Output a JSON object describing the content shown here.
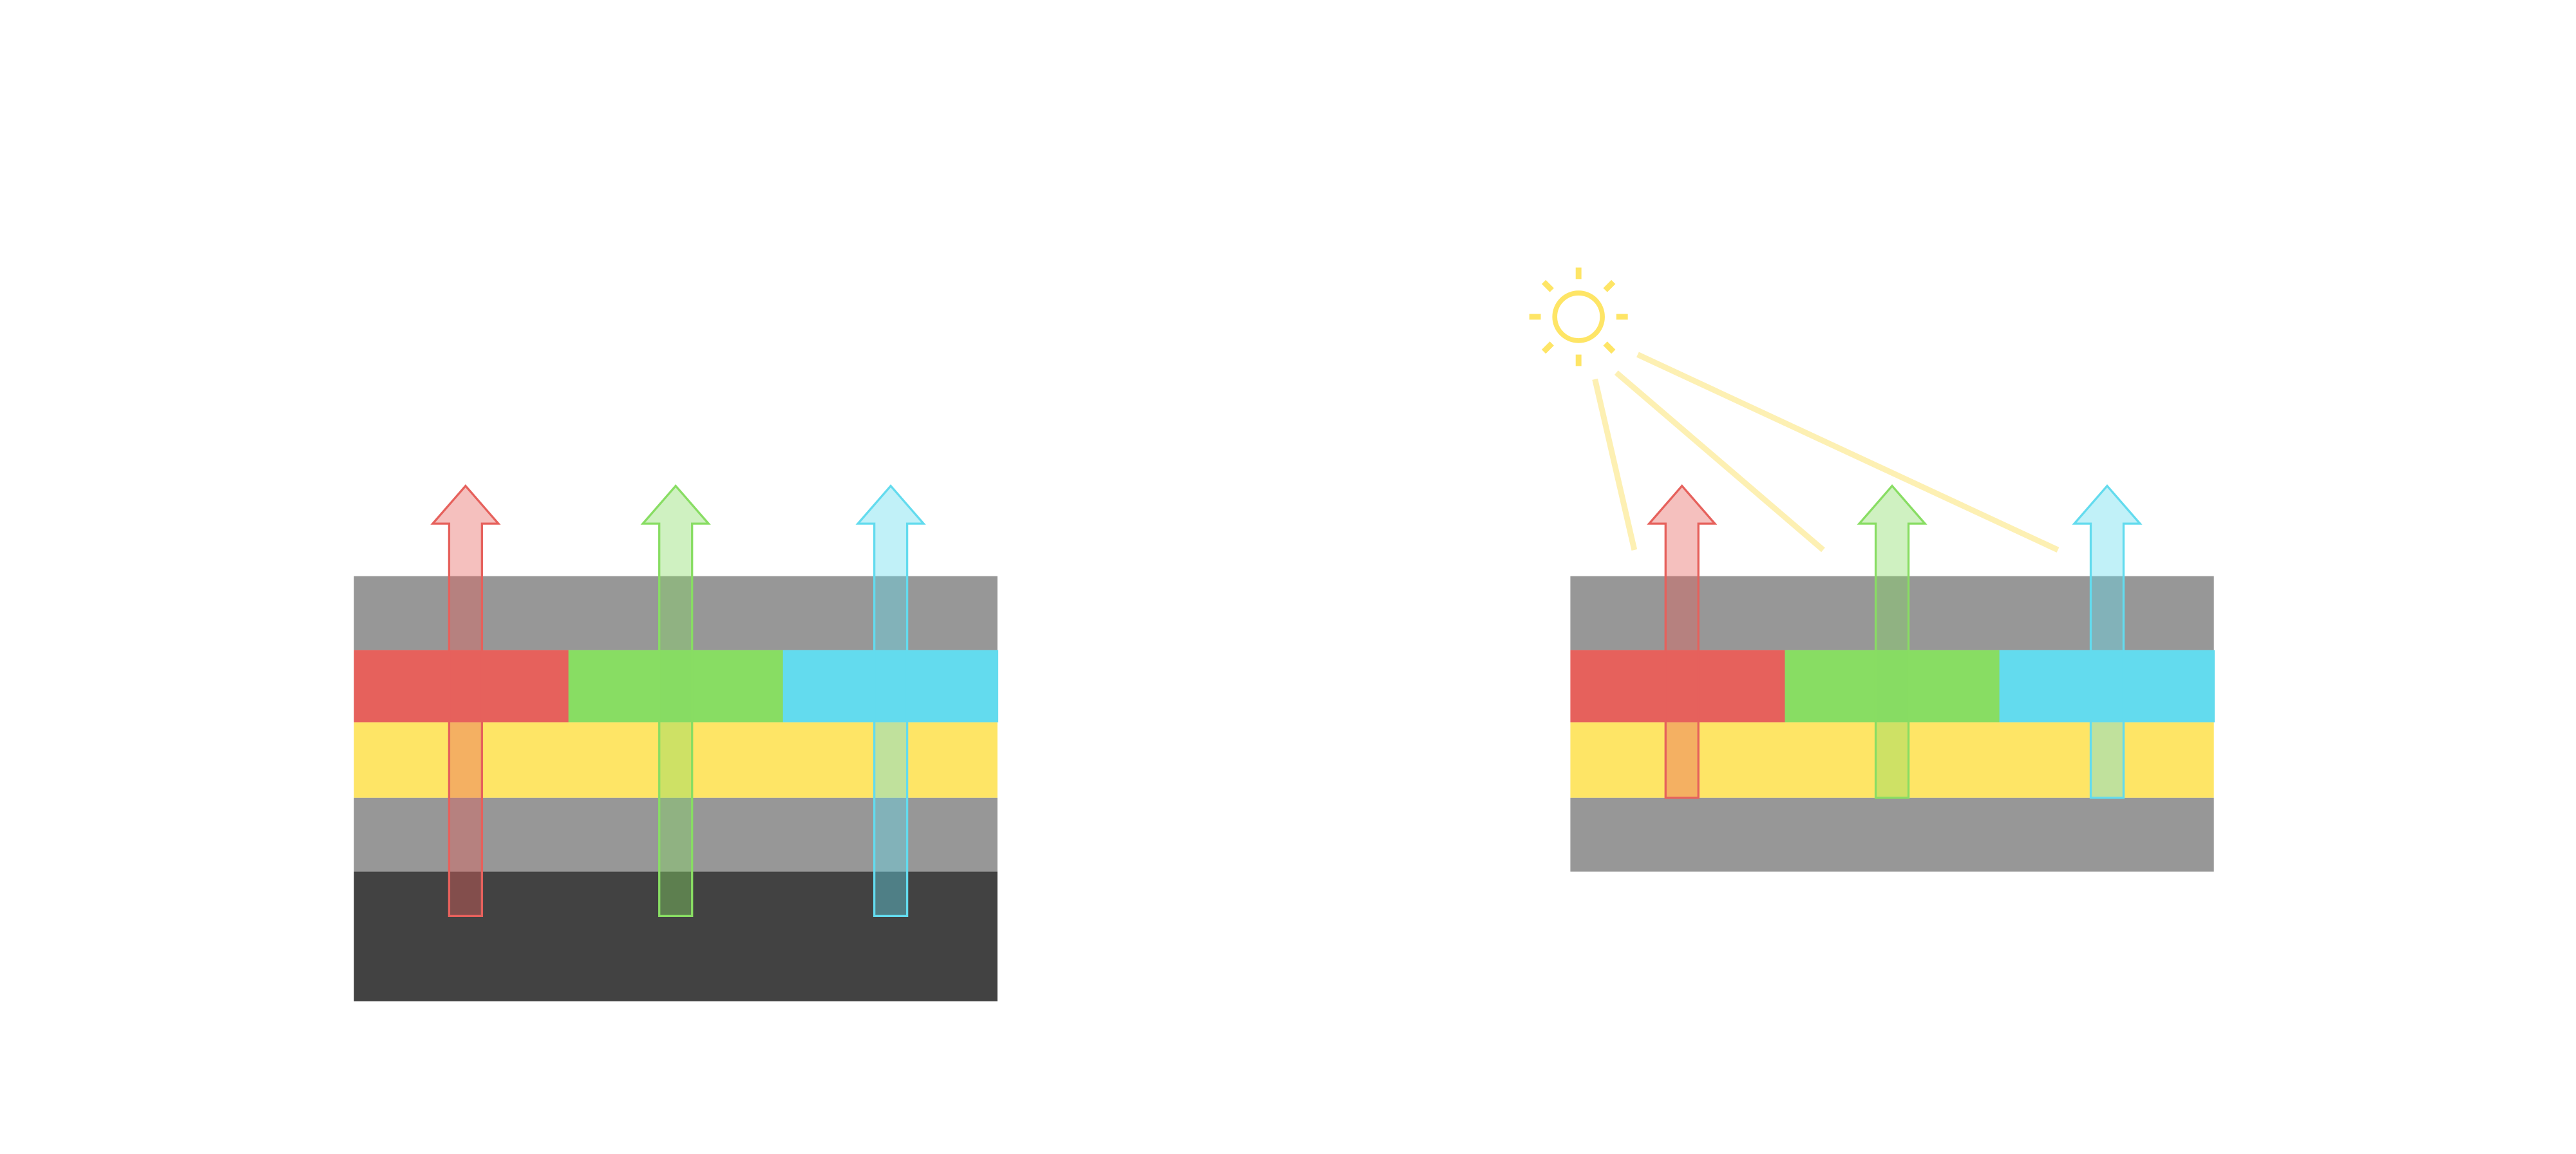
{
  "colors": {
    "background": "#ffffff",
    "gray_layer": "#979797",
    "dark_layer": "#424242",
    "red": "#e6615c",
    "green": "#88dd63",
    "cyan": "#63dbee",
    "yellow_layer": "#fee566",
    "sun": "#fee566",
    "sun_rays": "#fdf0b3"
  },
  "arrows": {
    "colors": [
      "#e6615c",
      "#88dd63",
      "#63dbee"
    ],
    "fill_opacity": 0.4
  },
  "diagrams": [
    {
      "name": "left-stack",
      "layers": [
        "gray_layer",
        "color_row",
        "yellow_layer",
        "gray_layer",
        "dark_layer"
      ],
      "sun": false
    },
    {
      "name": "right-stack",
      "layers": [
        "gray_layer",
        "color_row",
        "yellow_layer",
        "gray_layer"
      ],
      "sun": true
    }
  ]
}
